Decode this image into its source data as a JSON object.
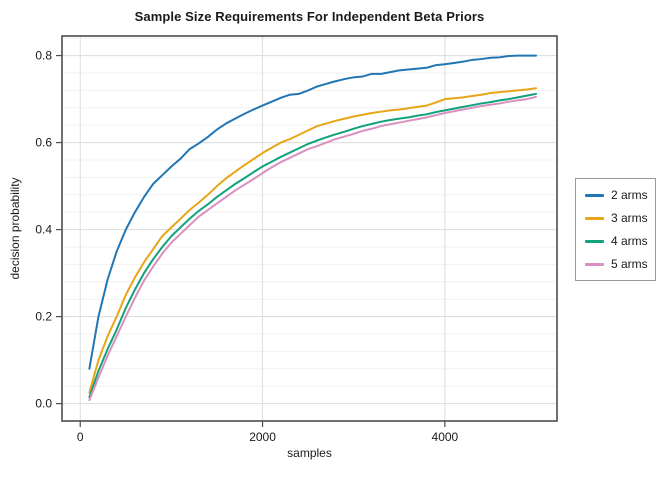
{
  "chart_data": {
    "type": "line",
    "title": "Sample Size Requirements For Independent Beta Priors",
    "xlabel": "samples",
    "ylabel": "decision probability",
    "x_axis": {
      "range": [
        -200,
        5230
      ],
      "ticks": [
        0,
        2000,
        4000
      ],
      "tick_labels": [
        "0",
        "2000",
        "4000"
      ],
      "grid": "major"
    },
    "y_axis": {
      "range": [
        -0.04,
        0.845
      ],
      "ticks": [
        0.0,
        0.2,
        0.4,
        0.6,
        0.8
      ],
      "tick_labels": [
        "0.0",
        "0.2",
        "0.4",
        "0.6",
        "0.8"
      ],
      "minor_step": 0.04,
      "grid": "major+minor"
    },
    "legend_position": "right-outside",
    "x": [
      100,
      200,
      300,
      400,
      500,
      600,
      700,
      800,
      900,
      1000,
      1100,
      1200,
      1300,
      1400,
      1500,
      1600,
      1700,
      1800,
      1900,
      2000,
      2100,
      2200,
      2300,
      2400,
      2500,
      2600,
      2700,
      2800,
      2900,
      3000,
      3100,
      3200,
      3300,
      3400,
      3500,
      3600,
      3700,
      3800,
      3900,
      4000,
      4100,
      4200,
      4300,
      4400,
      4500,
      4600,
      4700,
      4800,
      4900,
      5000
    ],
    "series": [
      {
        "name": "2 arms",
        "color": "#2176b5",
        "values": [
          0.08,
          0.2,
          0.285,
          0.35,
          0.4,
          0.44,
          0.475,
          0.505,
          0.525,
          0.545,
          0.563,
          0.585,
          0.598,
          0.613,
          0.63,
          0.644,
          0.655,
          0.666,
          0.676,
          0.685,
          0.694,
          0.703,
          0.71,
          0.712,
          0.72,
          0.729,
          0.735,
          0.741,
          0.746,
          0.75,
          0.752,
          0.758,
          0.758,
          0.762,
          0.766,
          0.768,
          0.77,
          0.772,
          0.778,
          0.78,
          0.783,
          0.786,
          0.79,
          0.792,
          0.795,
          0.796,
          0.799,
          0.8,
          0.8,
          0.8
        ]
      },
      {
        "name": "3 arms",
        "color": "#e7a518",
        "values": [
          0.025,
          0.1,
          0.155,
          0.2,
          0.25,
          0.29,
          0.325,
          0.355,
          0.385,
          0.405,
          0.425,
          0.445,
          0.462,
          0.48,
          0.5,
          0.518,
          0.533,
          0.548,
          0.562,
          0.576,
          0.588,
          0.6,
          0.608,
          0.618,
          0.628,
          0.638,
          0.644,
          0.65,
          0.655,
          0.66,
          0.664,
          0.668,
          0.671,
          0.674,
          0.676,
          0.679,
          0.682,
          0.685,
          0.692,
          0.7,
          0.702,
          0.704,
          0.707,
          0.71,
          0.714,
          0.716,
          0.718,
          0.72,
          0.722,
          0.725
        ]
      },
      {
        "name": "4 arms",
        "color": "#12a17d",
        "values": [
          0.015,
          0.075,
          0.125,
          0.17,
          0.22,
          0.262,
          0.3,
          0.332,
          0.36,
          0.385,
          0.405,
          0.425,
          0.443,
          0.458,
          0.475,
          0.49,
          0.505,
          0.518,
          0.532,
          0.545,
          0.556,
          0.567,
          0.577,
          0.587,
          0.597,
          0.605,
          0.612,
          0.619,
          0.625,
          0.632,
          0.638,
          0.643,
          0.648,
          0.652,
          0.655,
          0.658,
          0.662,
          0.665,
          0.67,
          0.674,
          0.678,
          0.682,
          0.686,
          0.69,
          0.693,
          0.697,
          0.7,
          0.704,
          0.708,
          0.712
        ]
      },
      {
        "name": "5 arms",
        "color": "#d990c0",
        "values": [
          0.008,
          0.06,
          0.11,
          0.155,
          0.2,
          0.243,
          0.283,
          0.315,
          0.345,
          0.37,
          0.39,
          0.41,
          0.43,
          0.445,
          0.46,
          0.475,
          0.49,
          0.503,
          0.516,
          0.53,
          0.543,
          0.555,
          0.565,
          0.575,
          0.585,
          0.592,
          0.6,
          0.608,
          0.614,
          0.62,
          0.627,
          0.632,
          0.638,
          0.642,
          0.646,
          0.65,
          0.654,
          0.658,
          0.663,
          0.668,
          0.672,
          0.676,
          0.68,
          0.684,
          0.687,
          0.69,
          0.694,
          0.697,
          0.7,
          0.705
        ]
      }
    ],
    "colors": {
      "frame": "#4d4d4d",
      "tick": "#4d4d4d",
      "grid_major": "#dcdcdc",
      "grid_minor": "#f1f1f1",
      "text": "#1a1a1a",
      "plot_background": "#ffffff",
      "legend_border": "#9a9a9a"
    }
  }
}
